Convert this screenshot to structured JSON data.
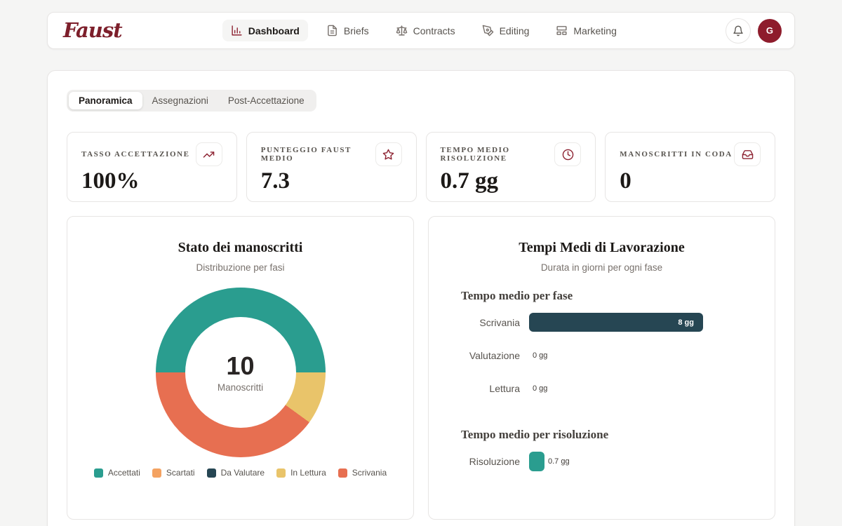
{
  "brand": {
    "logo_text": "Faust"
  },
  "colors": {
    "brand_red": "#7d1f2b",
    "avatar_bg": "#8e1c2c",
    "icon_accent": "#8e2433",
    "teal": "#2a9d8f",
    "orange": "#f4a261",
    "dark_navy": "#264653",
    "yellow": "#e9c46a",
    "red_orange": "#e76f51"
  },
  "nav": {
    "items": [
      {
        "label": "Dashboard",
        "icon": "bar-chart-icon",
        "active": true
      },
      {
        "label": "Briefs",
        "icon": "file-text-icon",
        "active": false
      },
      {
        "label": "Contracts",
        "icon": "scales-icon",
        "active": false
      },
      {
        "label": "Editing",
        "icon": "pen-tool-icon",
        "active": false
      },
      {
        "label": "Marketing",
        "icon": "layout-icon",
        "active": false
      }
    ],
    "avatar_initial": "G"
  },
  "tabs": {
    "items": [
      {
        "label": "Panoramica",
        "active": true
      },
      {
        "label": "Assegnazioni",
        "active": false
      },
      {
        "label": "Post-Accettazione",
        "active": false
      }
    ]
  },
  "stats": [
    {
      "label": "TASSO ACCETTAZIONE",
      "value": "100%",
      "icon": "trending-up-icon"
    },
    {
      "label": "PUNTEGGIO FAUST MEDIO",
      "value": "7.3",
      "icon": "star-icon"
    },
    {
      "label": "TEMPO MEDIO RISOLUZIONE",
      "value": "0.7 gg",
      "icon": "clock-icon"
    },
    {
      "label": "MANOSCRITTI IN CODA",
      "value": "0",
      "icon": "inbox-icon"
    }
  ],
  "donut_card": {
    "title": "Stato dei manoscritti",
    "subtitle": "Distribuzione per fasi",
    "center_value": "10",
    "center_label": "Manoscritti"
  },
  "bars_card": {
    "title": "Tempi Medi di Lavorazione",
    "subtitle": "Durata in giorni per ogni fase",
    "section1_heading": "Tempo medio per fase",
    "section2_heading": "Tempo medio per risoluzione"
  },
  "chart_data": [
    {
      "type": "pie",
      "donut": true,
      "title": "Stato dei manoscritti",
      "subtitle": "Distribuzione per fasi",
      "center_total": 10,
      "center_label": "Manoscritti",
      "start_angle_deg": 270,
      "direction": "clockwise",
      "legend_position": "bottom",
      "slices": [
        {
          "label": "Accettati",
          "value": 5,
          "color": "#2a9d8f"
        },
        {
          "label": "Scartati",
          "value": 0,
          "color": "#f4a261"
        },
        {
          "label": "Da Valutare",
          "value": 0,
          "color": "#264653"
        },
        {
          "label": "In Lettura",
          "value": 1,
          "color": "#e9c46a"
        },
        {
          "label": "Scrivania",
          "value": 4,
          "color": "#e76f51"
        }
      ]
    },
    {
      "type": "bar",
      "orientation": "horizontal",
      "title": "Tempo medio per fase",
      "categories": [
        "Scrivania",
        "Valutazione",
        "Lettura"
      ],
      "values": [
        8,
        0,
        0
      ],
      "labels": [
        "8 gg",
        "0 gg",
        "0 gg"
      ],
      "unit": "gg",
      "bar_color": "#264653",
      "xlim": [
        0,
        10
      ],
      "grid": false
    },
    {
      "type": "bar",
      "orientation": "horizontal",
      "title": "Tempo medio per risoluzione",
      "categories": [
        "Risoluzione"
      ],
      "values": [
        0.7
      ],
      "labels": [
        "0.7 gg"
      ],
      "unit": "gg",
      "bar_color": "#2a9d8f",
      "xlim": [
        0,
        10
      ],
      "grid": false
    }
  ]
}
